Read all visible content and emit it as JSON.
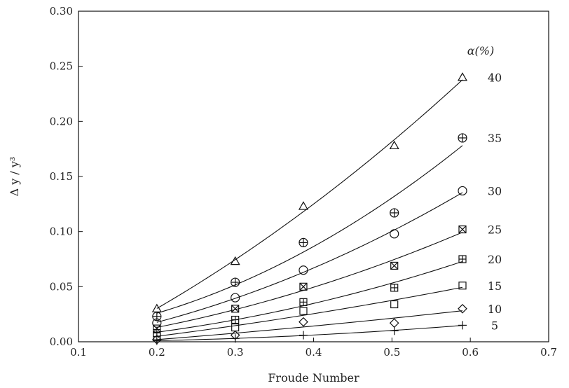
{
  "chart_data": {
    "type": "scatter",
    "xlabel": "Froude Number",
    "ylabel": "Δ y / y³",
    "legend_title": "α(%)",
    "xlim": [
      0.1,
      0.7
    ],
    "ylim": [
      0.0,
      0.3
    ],
    "x_ticks": [
      "0.1",
      "0.2",
      "0.3",
      "0.4",
      "0.5",
      "0.6",
      "0.7"
    ],
    "y_ticks": [
      "0.00",
      "0.05",
      "0.10",
      "0.15",
      "0.20",
      "0.25",
      "0.30"
    ],
    "legend_placement": "right",
    "series": [
      {
        "name": "40",
        "marker": "triangle",
        "x": [
          0.2,
          0.3,
          0.387,
          0.503,
          0.59
        ],
        "y": [
          0.03,
          0.073,
          0.123,
          0.178,
          0.24
        ]
      },
      {
        "name": "35",
        "marker": "circle-plus",
        "x": [
          0.2,
          0.3,
          0.387,
          0.503,
          0.59
        ],
        "y": [
          0.023,
          0.054,
          0.09,
          0.117,
          0.185
        ]
      },
      {
        "name": "30",
        "marker": "circle",
        "x": [
          0.2,
          0.3,
          0.387,
          0.503,
          0.59
        ],
        "y": [
          0.017,
          0.04,
          0.065,
          0.098,
          0.137
        ]
      },
      {
        "name": "25",
        "marker": "square-x",
        "x": [
          0.2,
          0.3,
          0.387,
          0.503,
          0.59
        ],
        "y": [
          0.012,
          0.03,
          0.05,
          0.069,
          0.102
        ]
      },
      {
        "name": "20",
        "marker": "square-plus",
        "x": [
          0.2,
          0.3,
          0.387,
          0.503,
          0.59
        ],
        "y": [
          0.008,
          0.02,
          0.036,
          0.049,
          0.075
        ]
      },
      {
        "name": "15",
        "marker": "square",
        "x": [
          0.2,
          0.3,
          0.387,
          0.503,
          0.59
        ],
        "y": [
          0.005,
          0.013,
          0.028,
          0.034,
          0.051
        ]
      },
      {
        "name": "10",
        "marker": "diamond",
        "x": [
          0.2,
          0.3,
          0.387,
          0.503,
          0.59
        ],
        "y": [
          0.002,
          0.006,
          0.018,
          0.017,
          0.03
        ]
      },
      {
        "name": "5",
        "marker": "plus",
        "x": [
          0.2,
          0.3,
          0.387,
          0.503,
          0.59
        ],
        "y": [
          0.001,
          0.003,
          0.006,
          0.01,
          0.015
        ]
      }
    ]
  }
}
